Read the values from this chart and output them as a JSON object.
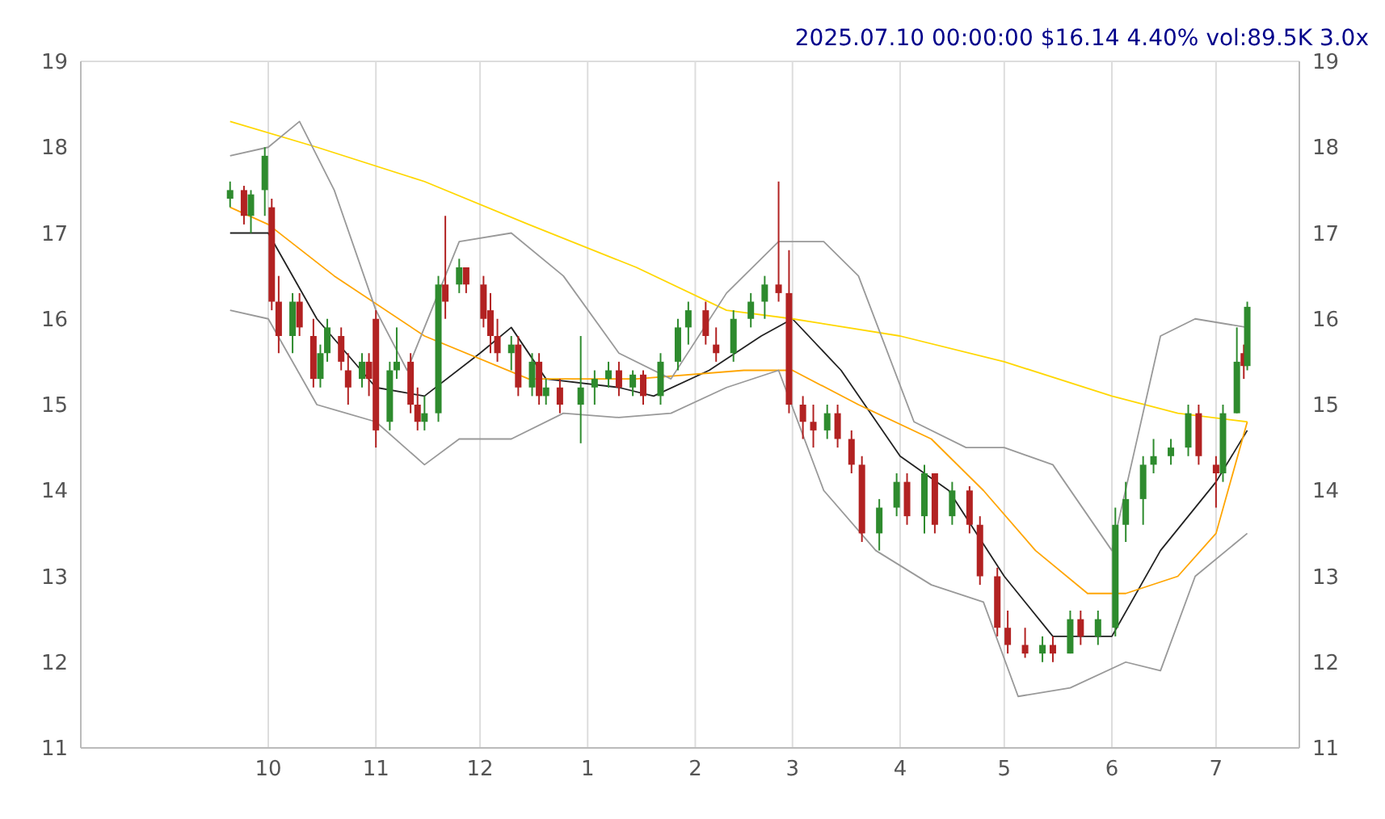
{
  "chart_data": {
    "type": "candlestick",
    "title": "2025.07.10 00:00:00 $16.14 4.40% vol:89.5K 3.0x",
    "x": [
      "2024-09-20",
      "2024-09-24",
      "2024-09-26",
      "2024-09-30",
      "2024-10-02",
      "2024-10-04",
      "2024-10-08",
      "2024-10-10",
      "2024-10-14",
      "2024-10-16",
      "2024-10-18",
      "2024-10-22",
      "2024-10-24",
      "2024-10-28",
      "2024-10-30",
      "2024-11-01",
      "2024-11-05",
      "2024-11-07",
      "2024-11-11",
      "2024-11-13",
      "2024-11-15",
      "2024-11-19",
      "2024-11-21",
      "2024-11-25",
      "2024-11-27",
      "2024-12-02",
      "2024-12-04",
      "2024-12-06",
      "2024-12-10",
      "2024-12-12",
      "2024-12-16",
      "2024-12-18",
      "2024-12-20",
      "2024-12-24",
      "2024-12-30",
      "2025-01-03",
      "2025-01-07",
      "2025-01-10",
      "2025-01-14",
      "2025-01-17",
      "2025-01-22",
      "2025-01-27",
      "2025-01-30",
      "2025-02-04",
      "2025-02-07",
      "2025-02-12",
      "2025-02-17",
      "2025-02-21",
      "2025-02-25",
      "2025-02-28",
      "2025-03-04",
      "2025-03-07",
      "2025-03-11",
      "2025-03-14",
      "2025-03-18",
      "2025-03-21",
      "2025-03-26",
      "2025-03-31",
      "2025-04-03",
      "2025-04-08",
      "2025-04-11",
      "2025-04-16",
      "2025-04-21",
      "2025-04-24",
      "2025-04-29",
      "2025-05-02",
      "2025-05-07",
      "2025-05-12",
      "2025-05-15",
      "2025-05-20",
      "2025-05-23",
      "2025-05-28",
      "2025-06-02",
      "2025-06-05",
      "2025-06-10",
      "2025-06-13",
      "2025-06-18",
      "2025-06-23",
      "2025-06-26",
      "2025-07-01",
      "2025-07-03",
      "2025-07-07",
      "2025-07-09",
      "2025-07-10"
    ],
    "ohlc": [
      [
        17.4,
        17.6,
        17.3,
        17.5
      ],
      [
        17.5,
        17.55,
        17.1,
        17.2
      ],
      [
        17.2,
        17.5,
        17.0,
        17.45
      ],
      [
        17.5,
        18.0,
        17.2,
        17.9
      ],
      [
        17.3,
        17.4,
        16.1,
        16.2
      ],
      [
        16.2,
        16.5,
        15.6,
        15.8
      ],
      [
        15.8,
        16.3,
        15.6,
        16.2
      ],
      [
        16.2,
        16.3,
        15.8,
        15.9
      ],
      [
        15.8,
        16.0,
        15.2,
        15.3
      ],
      [
        15.3,
        15.7,
        15.2,
        15.6
      ],
      [
        15.6,
        16.0,
        15.5,
        15.9
      ],
      [
        15.8,
        15.9,
        15.4,
        15.5
      ],
      [
        15.4,
        15.6,
        15.0,
        15.2
      ],
      [
        15.3,
        15.6,
        15.2,
        15.5
      ],
      [
        15.5,
        15.6,
        15.1,
        15.3
      ],
      [
        16.0,
        16.1,
        14.5,
        14.7
      ],
      [
        14.8,
        15.5,
        14.7,
        15.4
      ],
      [
        15.4,
        15.9,
        15.3,
        15.5
      ],
      [
        15.5,
        15.6,
        14.9,
        15.0
      ],
      [
        15.0,
        15.2,
        14.7,
        14.8
      ],
      [
        14.8,
        15.1,
        14.7,
        14.9
      ],
      [
        14.9,
        16.5,
        14.8,
        16.4
      ],
      [
        16.4,
        17.2,
        16.0,
        16.2
      ],
      [
        16.4,
        16.7,
        16.3,
        16.6
      ],
      [
        16.6,
        16.6,
        16.3,
        16.4
      ],
      [
        16.4,
        16.5,
        15.9,
        16.0
      ],
      [
        16.1,
        16.3,
        15.6,
        15.8
      ],
      [
        15.8,
        16.0,
        15.5,
        15.6
      ],
      [
        15.6,
        15.8,
        15.4,
        15.7
      ],
      [
        15.7,
        15.8,
        15.1,
        15.2
      ],
      [
        15.2,
        15.6,
        15.1,
        15.5
      ],
      [
        15.5,
        15.6,
        15.0,
        15.1
      ],
      [
        15.1,
        15.3,
        15.0,
        15.2
      ],
      [
        15.2,
        15.3,
        14.9,
        15.0
      ],
      [
        15.0,
        15.8,
        14.55,
        15.2
      ],
      [
        15.2,
        15.4,
        15.0,
        15.3
      ],
      [
        15.3,
        15.5,
        15.2,
        15.4
      ],
      [
        15.4,
        15.5,
        15.1,
        15.2
      ],
      [
        15.2,
        15.4,
        15.1,
        15.35
      ],
      [
        15.35,
        15.4,
        15.0,
        15.1
      ],
      [
        15.1,
        15.6,
        15.0,
        15.5
      ],
      [
        15.5,
        16.0,
        15.4,
        15.9
      ],
      [
        15.9,
        16.2,
        15.7,
        16.1
      ],
      [
        16.1,
        16.2,
        15.7,
        15.8
      ],
      [
        15.7,
        15.9,
        15.5,
        15.6
      ],
      [
        15.6,
        16.1,
        15.5,
        16.0
      ],
      [
        16.0,
        16.3,
        15.9,
        16.2
      ],
      [
        16.2,
        16.5,
        16.0,
        16.4
      ],
      [
        16.4,
        17.6,
        16.2,
        16.3
      ],
      [
        16.3,
        16.8,
        14.9,
        15.0
      ],
      [
        15.0,
        15.1,
        14.6,
        14.8
      ],
      [
        14.8,
        15.0,
        14.5,
        14.7
      ],
      [
        14.7,
        15.0,
        14.6,
        14.9
      ],
      [
        14.9,
        15.0,
        14.5,
        14.6
      ],
      [
        14.6,
        14.7,
        14.2,
        14.3
      ],
      [
        14.3,
        14.4,
        13.4,
        13.5
      ],
      [
        13.5,
        13.9,
        13.3,
        13.8
      ],
      [
        13.8,
        14.2,
        13.7,
        14.1
      ],
      [
        14.1,
        14.2,
        13.6,
        13.7
      ],
      [
        13.7,
        14.3,
        13.5,
        14.2
      ],
      [
        14.2,
        14.2,
        13.5,
        13.6
      ],
      [
        13.7,
        14.1,
        13.6,
        14.0
      ],
      [
        14.0,
        14.05,
        13.5,
        13.6
      ],
      [
        13.6,
        13.7,
        12.9,
        13.0
      ],
      [
        13.0,
        13.1,
        12.3,
        12.4
      ],
      [
        12.4,
        12.6,
        12.1,
        12.2
      ],
      [
        12.2,
        12.4,
        12.05,
        12.1
      ],
      [
        12.1,
        12.3,
        12.0,
        12.2
      ],
      [
        12.2,
        12.3,
        12.0,
        12.1
      ],
      [
        12.1,
        12.6,
        12.1,
        12.5
      ],
      [
        12.5,
        12.6,
        12.2,
        12.3
      ],
      [
        12.3,
        12.6,
        12.2,
        12.5
      ],
      [
        12.4,
        13.8,
        12.3,
        13.6
      ],
      [
        13.6,
        14.1,
        13.4,
        13.9
      ],
      [
        13.9,
        14.4,
        13.6,
        14.3
      ],
      [
        14.3,
        14.6,
        14.2,
        14.4
      ],
      [
        14.4,
        14.6,
        14.3,
        14.5
      ],
      [
        14.5,
        15.0,
        14.4,
        14.9
      ],
      [
        14.9,
        15.0,
        14.3,
        14.4
      ],
      [
        14.3,
        14.4,
        13.8,
        14.2
      ],
      [
        14.2,
        15.0,
        14.1,
        14.9
      ],
      [
        14.9,
        15.9,
        14.9,
        15.5
      ],
      [
        15.6,
        15.7,
        15.3,
        15.45
      ],
      [
        15.45,
        16.2,
        15.4,
        16.14
      ]
    ],
    "series": [
      {
        "type": "line",
        "color": "#222222",
        "x": [
          "2024-09-20",
          "2024-10-01",
          "2024-10-15",
          "2024-11-01",
          "2024-11-15",
          "2024-12-01",
          "2024-12-10",
          "2024-12-20",
          "2025-01-10",
          "2025-01-20",
          "2025-02-05",
          "2025-02-20",
          "2025-03-01",
          "2025-03-15",
          "2025-04-01",
          "2025-04-15",
          "2025-05-01",
          "2025-05-15",
          "2025-06-01",
          "2025-06-15",
          "2025-07-01",
          "2025-07-10"
        ],
        "values": [
          17.0,
          17.0,
          16.0,
          15.2,
          15.1,
          15.6,
          15.9,
          15.3,
          15.2,
          15.1,
          15.4,
          15.8,
          16.0,
          15.4,
          14.4,
          14.0,
          13.0,
          12.3,
          12.3,
          13.3,
          14.1,
          14.7
        ]
      },
      {
        "type": "line",
        "color": "#ffa500",
        "x": [
          "2024-09-20",
          "2024-10-01",
          "2024-10-20",
          "2024-11-15",
          "2024-12-15",
          "2025-01-15",
          "2025-02-15",
          "2025-03-01",
          "2025-03-20",
          "2025-04-10",
          "2025-04-25",
          "2025-05-10",
          "2025-05-25",
          "2025-06-05",
          "2025-06-20",
          "2025-07-01",
          "2025-07-10"
        ],
        "values": [
          17.3,
          17.1,
          16.5,
          15.8,
          15.3,
          15.3,
          15.4,
          15.4,
          15.0,
          14.6,
          14.0,
          13.3,
          12.8,
          12.8,
          13.0,
          13.5,
          14.8
        ]
      },
      {
        "type": "line",
        "color": "#ffd700",
        "x": [
          "2024-09-20",
          "2024-10-15",
          "2024-11-15",
          "2024-12-15",
          "2025-01-15",
          "2025-02-10",
          "2025-03-01",
          "2025-04-01",
          "2025-05-01",
          "2025-06-01",
          "2025-06-20",
          "2025-07-10"
        ],
        "values": [
          18.3,
          18.0,
          17.6,
          17.1,
          16.6,
          16.1,
          16.0,
          15.8,
          15.5,
          15.1,
          14.9,
          14.8
        ]
      },
      {
        "type": "line",
        "color": "#999999",
        "x": [
          "2024-09-20",
          "2024-10-01",
          "2024-10-10",
          "2024-10-20",
          "2024-11-01",
          "2024-11-10",
          "2024-11-25",
          "2024-12-10",
          "2024-12-25",
          "2025-01-10",
          "2025-01-25",
          "2025-02-10",
          "2025-02-25",
          "2025-03-10",
          "2025-03-20",
          "2025-04-05",
          "2025-04-20",
          "2025-05-01",
          "2025-05-15",
          "2025-06-01",
          "2025-06-15",
          "2025-06-25",
          "2025-07-10"
        ],
        "values": [
          17.9,
          18.0,
          18.3,
          17.5,
          16.1,
          15.4,
          16.9,
          17.0,
          16.5,
          15.6,
          15.3,
          16.3,
          16.9,
          16.9,
          16.5,
          14.8,
          14.5,
          14.5,
          14.3,
          13.3,
          15.8,
          16.0,
          15.9
        ]
      },
      {
        "type": "line",
        "color": "#999999",
        "x": [
          "2024-09-20",
          "2024-10-01",
          "2024-10-15",
          "2024-11-01",
          "2024-11-15",
          "2024-11-25",
          "2024-12-10",
          "2024-12-25",
          "2025-01-10",
          "2025-01-25",
          "2025-02-10",
          "2025-02-25",
          "2025-03-10",
          "2025-03-25",
          "2025-04-10",
          "2025-04-25",
          "2025-05-05",
          "2025-05-20",
          "2025-06-05",
          "2025-06-15",
          "2025-06-25",
          "2025-07-10"
        ],
        "values": [
          16.1,
          16.0,
          15.0,
          14.8,
          14.3,
          14.6,
          14.6,
          14.9,
          14.85,
          14.9,
          15.2,
          15.4,
          14.0,
          13.3,
          12.9,
          12.7,
          11.6,
          11.7,
          12.0,
          11.9,
          13.0,
          13.5
        ]
      }
    ],
    "xlim": [
      "2024-08-08",
      "2025-07-25"
    ],
    "xticks": [
      {
        "value": "2024-10-01",
        "label": "10"
      },
      {
        "value": "2024-11-01",
        "label": "11"
      },
      {
        "value": "2024-12-01",
        "label": "12"
      },
      {
        "value": "2025-01-01",
        "label": "1"
      },
      {
        "value": "2025-02-01",
        "label": "2"
      },
      {
        "value": "2025-03-01",
        "label": "3"
      },
      {
        "value": "2025-04-01",
        "label": "4"
      },
      {
        "value": "2025-05-01",
        "label": "5"
      },
      {
        "value": "2025-06-01",
        "label": "6"
      },
      {
        "value": "2025-07-01",
        "label": "7"
      }
    ],
    "ylim": [
      11,
      19
    ],
    "yticks": [
      11,
      12,
      13,
      14,
      15,
      16,
      17,
      18,
      19
    ],
    "y2lim": [
      11,
      19
    ],
    "y2ticks": [
      11,
      12,
      13,
      14,
      15,
      16,
      17,
      18,
      19
    ],
    "grid": true
  }
}
